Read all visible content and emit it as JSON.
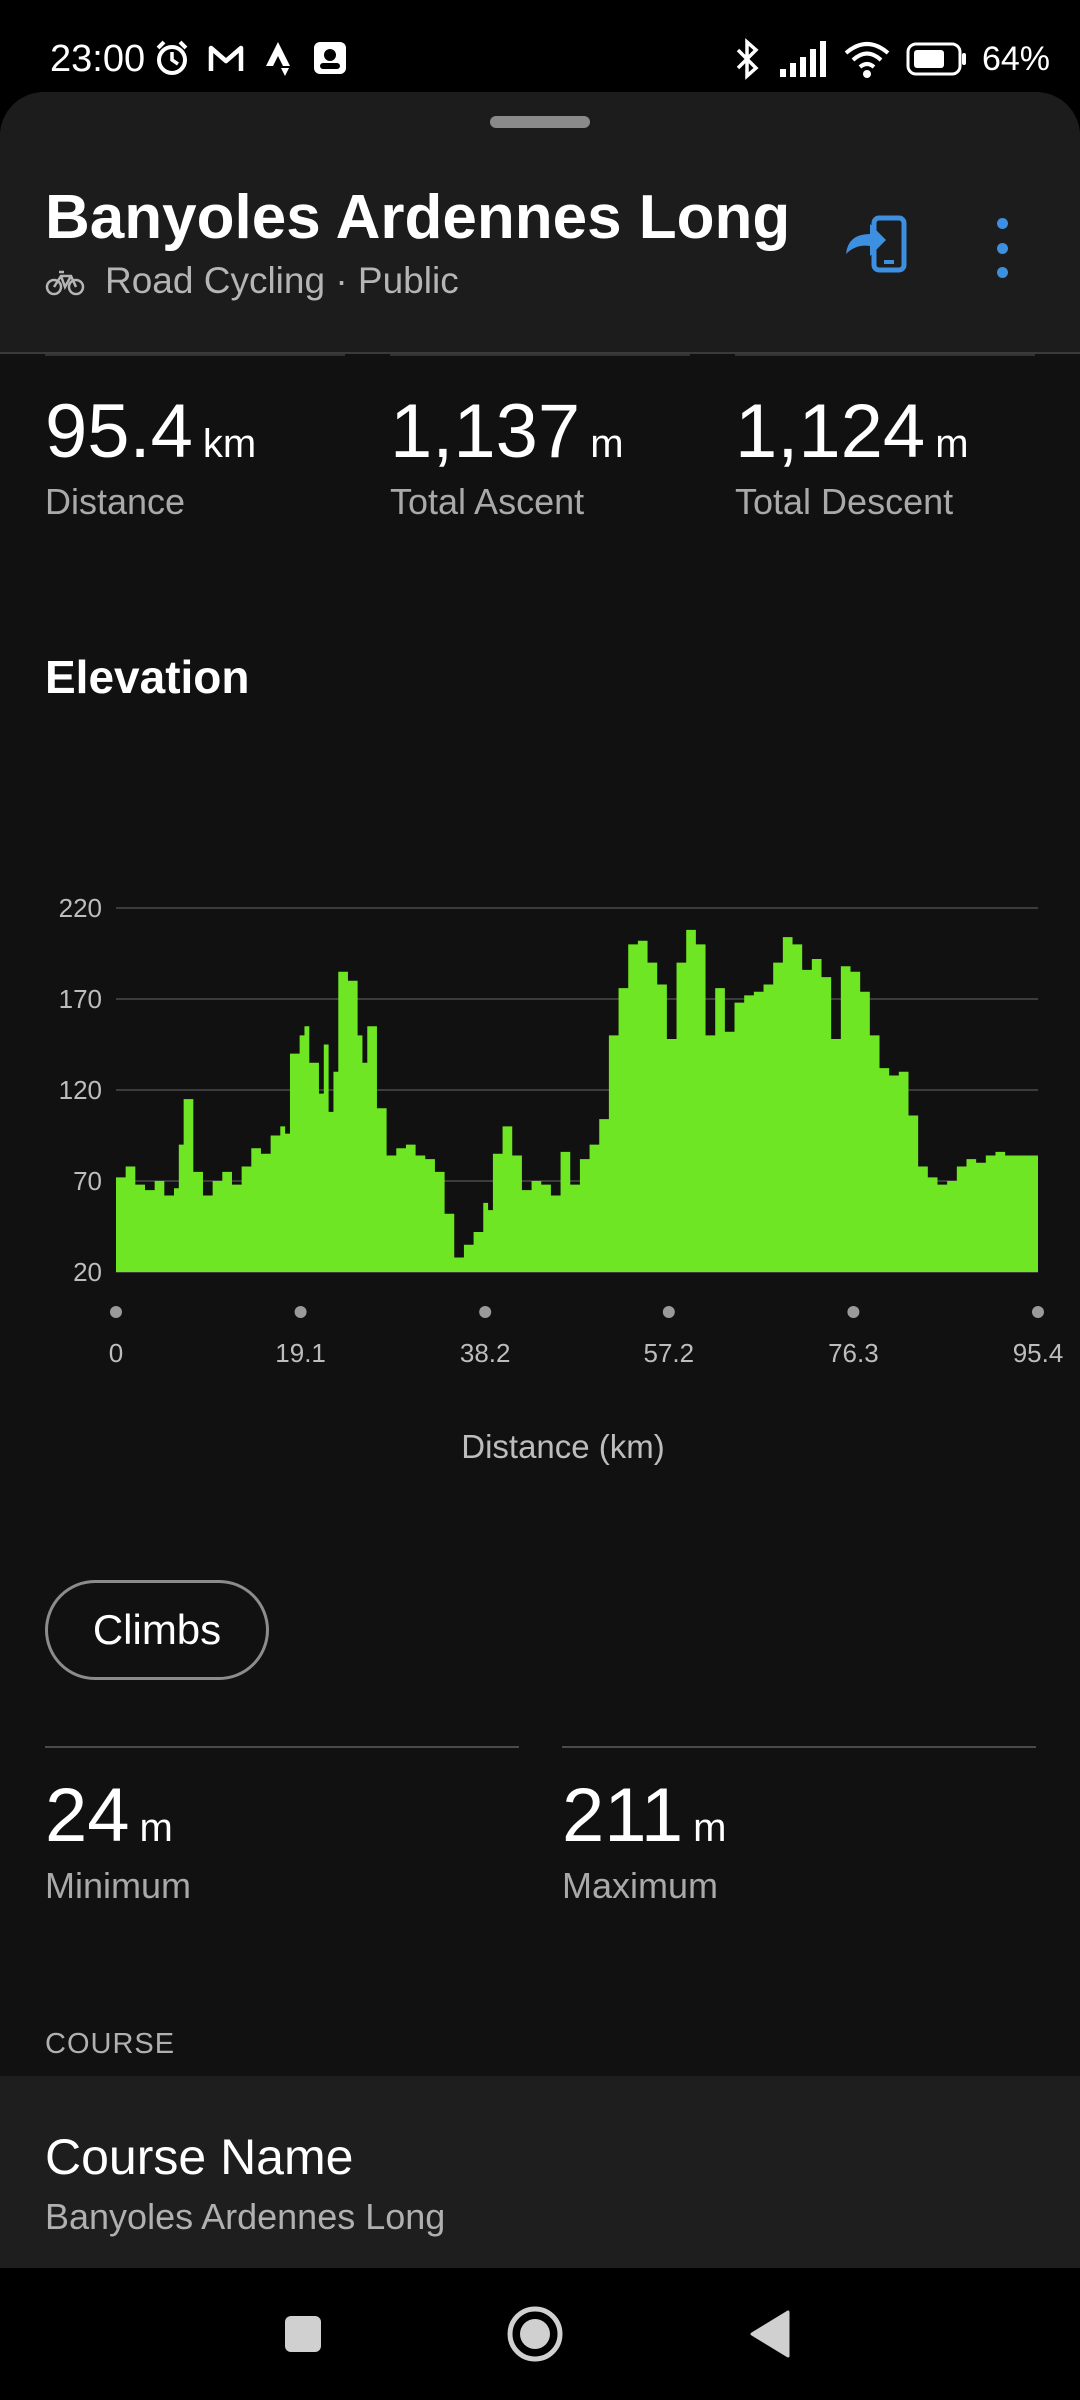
{
  "status_bar": {
    "time": "23:00",
    "battery": "64%",
    "left_icons": [
      "alarm-icon",
      "gmail-icon",
      "strava-icon",
      "notification-app-icon"
    ],
    "right_icons": [
      "bluetooth-icon",
      "signal-icon",
      "wifi-icon",
      "battery-icon"
    ]
  },
  "header": {
    "title": "Banyoles Ardennes Long",
    "activity_icon": "bike-icon",
    "subtitle": "Road Cycling · Public",
    "send_icon": "send-to-device-icon",
    "menu_icon": "more-vert-icon",
    "accent_color": "#3d8fe0"
  },
  "stats": [
    {
      "value": "95.4",
      "unit": "km",
      "label": "Distance"
    },
    {
      "value": "1,137",
      "unit": "m",
      "label": "Total Ascent"
    },
    {
      "value": "1,124",
      "unit": "m",
      "label": "Total Descent"
    }
  ],
  "elevation": {
    "section_title": "Elevation",
    "climbs_label": "Climbs",
    "min": {
      "value": "24",
      "unit": "m",
      "label": "Minimum"
    },
    "max": {
      "value": "211",
      "unit": "m",
      "label": "Maximum"
    }
  },
  "chart_data": {
    "type": "area",
    "xlabel": "Distance (km)",
    "ylabel": "",
    "x_ticks": [
      "0",
      "19.1",
      "38.2",
      "57.2",
      "76.3",
      "95.4"
    ],
    "y_ticks": [
      "220",
      "170",
      "120",
      "70",
      "20"
    ],
    "xlim": [
      0,
      95.4
    ],
    "ylim": [
      20,
      220
    ],
    "grid": true,
    "fill_color": "#6fe623",
    "x": [
      0,
      1,
      2,
      3,
      4,
      5,
      6,
      6.5,
      7,
      8,
      9,
      10,
      11,
      12,
      13,
      14,
      15,
      16,
      17,
      17.5,
      18,
      19,
      19.5,
      20,
      21,
      21.5,
      22,
      22.5,
      23,
      24,
      25,
      25.5,
      26,
      27,
      28,
      29,
      30,
      31,
      32,
      33,
      34,
      35,
      36,
      37,
      38,
      38.5,
      39,
      40,
      41,
      42,
      43,
      44,
      45,
      46,
      47,
      48,
      49,
      50,
      51,
      52,
      53,
      54,
      55,
      56,
      57,
      58,
      59,
      60,
      61,
      62,
      63,
      64,
      65,
      66,
      67,
      68,
      69,
      70,
      71,
      72,
      73,
      74,
      75,
      76,
      77,
      78,
      79,
      80,
      81,
      82,
      83,
      84,
      85,
      86,
      87,
      88,
      89,
      90,
      91,
      92,
      93,
      94,
      95,
      95.4
    ],
    "y": [
      72,
      78,
      68,
      65,
      70,
      62,
      66,
      90,
      115,
      75,
      62,
      70,
      75,
      68,
      78,
      88,
      85,
      95,
      100,
      96,
      140,
      150,
      155,
      135,
      118,
      145,
      108,
      130,
      185,
      180,
      150,
      135,
      155,
      110,
      84,
      88,
      90,
      84,
      82,
      75,
      52,
      28,
      35,
      42,
      58,
      54,
      85,
      100,
      84,
      65,
      70,
      68,
      62,
      86,
      68,
      82,
      90,
      104,
      150,
      176,
      200,
      202,
      190,
      178,
      148,
      190,
      208,
      200,
      150,
      176,
      152,
      168,
      172,
      174,
      178,
      190,
      204,
      200,
      186,
      192,
      182,
      148,
      188,
      185,
      174,
      150,
      132,
      128,
      130,
      106,
      78,
      72,
      68,
      70,
      78,
      82,
      80,
      84,
      86,
      84,
      84,
      84,
      84,
      85
    ]
  },
  "course_section": {
    "label": "COURSE",
    "field_title": "Course Name",
    "field_value": "Banyoles Ardennes Long"
  },
  "nav": {
    "icons": [
      "recents-icon",
      "home-icon",
      "back-icon"
    ]
  }
}
